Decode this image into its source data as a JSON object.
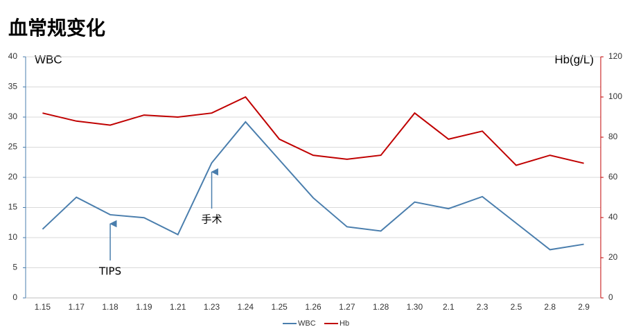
{
  "chart_data": {
    "type": "line",
    "title": "血常规变化",
    "y_label": "WBC",
    "y2_label": "Hb(g/L)",
    "categories": [
      "1.15",
      "1.17",
      "1.18",
      "1.19",
      "1.21",
      "1.23",
      "1.24",
      "1.25",
      "1.26",
      "1.27",
      "1.28",
      "1.30",
      "2.1",
      "2.3",
      "2.5",
      "2.8",
      "2.9"
    ],
    "series": [
      {
        "name": "WBC",
        "color": "#4a7ead",
        "values": [
          11.4,
          16.7,
          13.8,
          13.3,
          10.5,
          22.4,
          29.2,
          22.9,
          16.6,
          11.8,
          11.1,
          15.9,
          14.8,
          16.8,
          12.4,
          8.0,
          8.9
        ]
      },
      {
        "name": "Hb",
        "color": "#c00000",
        "axis": "y2",
        "values": [
          92,
          88,
          86,
          91,
          90,
          92,
          100,
          79,
          71,
          69,
          71,
          92,
          79,
          83,
          66,
          71,
          67
        ]
      }
    ],
    "ylim": [
      0,
      40
    ],
    "yticks": [
      0,
      5,
      10,
      15,
      20,
      25,
      30,
      35,
      40
    ],
    "y2lim": [
      0,
      120
    ],
    "y2ticks": [
      0,
      20,
      40,
      60,
      80,
      100,
      120
    ],
    "grid": true,
    "legend": "bottom",
    "annotations": [
      {
        "text": "TIPS",
        "x": "1.18"
      },
      {
        "text": "手术",
        "x": "1.23"
      }
    ]
  }
}
